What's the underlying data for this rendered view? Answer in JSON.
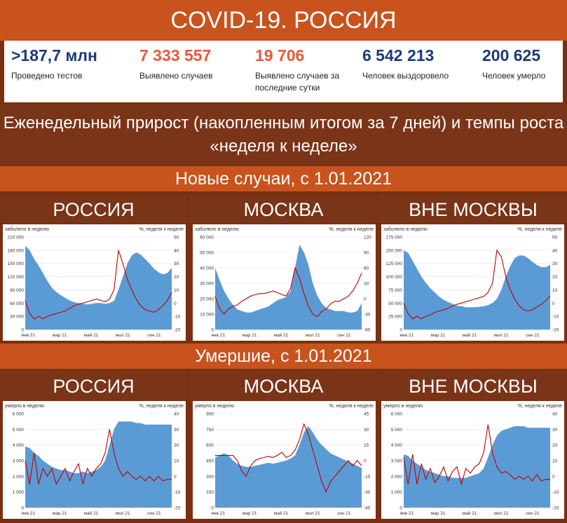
{
  "title": "COVID-19. РОССИЯ",
  "stats": [
    {
      "value": ">187,7 млн",
      "label": "Проведено тестов",
      "color": "#1c3a7a"
    },
    {
      "value": "7 333 557",
      "label": "Выявлено случаев",
      "color": "#e8583a"
    },
    {
      "value": "19 706",
      "label": "Выявлено случаев за последние сутки",
      "color": "#e8583a"
    },
    {
      "value": "6 542 213",
      "label": "Человек выздоровело",
      "color": "#1c3a7a"
    },
    {
      "value": "200 625",
      "label": "Человек умерло",
      "color": "#1c3a7a"
    }
  ],
  "subtitle": "Еженедельный прирост (накопленным итогом за 7 дней) и темпы роста «неделя к неделе»",
  "section_cases": "Новые случаи, с 1.01.2021",
  "section_deaths": "Умершие, с 1.01.2021",
  "regions": [
    "РОССИЯ",
    "МОСКВА",
    "ВНЕ МОСКВЫ"
  ],
  "colors": {
    "area": "#5b9bd5",
    "line": "#c00000",
    "header": "#c8531c",
    "dark": "#7a3418"
  },
  "chart_data": [
    {
      "type": "area",
      "region": "РОССИЯ",
      "metric": "cases",
      "ylabel": "заболело в неделю",
      "y2label": "%, неделя к неделе",
      "x_ticks": [
        "янв 21",
        "мар 21",
        "май 21",
        "июл 21",
        "сен 21"
      ],
      "ylim": [
        0,
        210000
      ],
      "y_ticks": [
        0,
        30000,
        60000,
        90000,
        120000,
        150000,
        180000,
        210000
      ],
      "y_tick_labels": [
        "0",
        "30 000",
        "60 000",
        "90 000",
        "120 000",
        "150 000",
        "180 000",
        "210 000"
      ],
      "y2lim": [
        -20,
        50
      ],
      "y2_ticks": [
        -20,
        -10,
        0,
        10,
        20,
        30,
        40,
        50
      ],
      "series": [
        {
          "name": "заболело в неделю",
          "axis": "left",
          "values": [
            190000,
            180000,
            160000,
            145000,
            128000,
            110000,
            95000,
            85000,
            78000,
            72000,
            66000,
            62000,
            60000,
            58000,
            57000,
            58000,
            60000,
            60000,
            58000,
            60000,
            65000,
            90000,
            120000,
            150000,
            168000,
            175000,
            170000,
            160000,
            150000,
            138000,
            130000,
            125000,
            128000,
            140000
          ]
        },
        {
          "name": "%, неделя к неделе",
          "axis": "right",
          "values": [
            2,
            -8,
            -12,
            -10,
            -12,
            -10,
            -9,
            -8,
            -7,
            -6,
            -4,
            -2,
            -1,
            0,
            1,
            2,
            3,
            2,
            1,
            3,
            10,
            40,
            30,
            18,
            10,
            3,
            -2,
            -5,
            -6,
            -7,
            -5,
            -2,
            2,
            8
          ]
        }
      ]
    },
    {
      "type": "area",
      "region": "МОСКВА",
      "metric": "cases",
      "ylabel": "заболело в неделю",
      "y2label": "%, неделя к неделе",
      "x_ticks": [
        "янв 21",
        "мар 21",
        "май 21",
        "июл 21",
        "сен 21"
      ],
      "ylim": [
        0,
        60000
      ],
      "y_ticks": [
        0,
        10000,
        20000,
        30000,
        40000,
        50000,
        60000
      ],
      "y_tick_labels": [
        "0",
        "10 000",
        "20 000",
        "30 000",
        "40 000",
        "50 000",
        "60 000"
      ],
      "y2lim": [
        -60,
        120
      ],
      "y2_ticks": [
        -60,
        -30,
        0,
        30,
        60,
        90,
        120
      ],
      "series": [
        {
          "name": "заболело в неделю",
          "axis": "left",
          "values": [
            40000,
            32000,
            25000,
            20000,
            16000,
            13000,
            12000,
            11000,
            11000,
            12000,
            13000,
            14000,
            15000,
            17000,
            19000,
            20000,
            21000,
            25000,
            40000,
            55000,
            50000,
            42000,
            30000,
            22000,
            17000,
            14000,
            13000,
            12000,
            12000,
            12000,
            11000,
            11000,
            12000,
            17000
          ]
        },
        {
          "name": "%, неделя к неделе",
          "axis": "right",
          "values": [
            5,
            -20,
            -30,
            -20,
            -15,
            -12,
            -5,
            0,
            5,
            8,
            10,
            10,
            12,
            15,
            12,
            8,
            5,
            20,
            60,
            40,
            10,
            -15,
            -30,
            -35,
            -25,
            -20,
            -10,
            -5,
            -5,
            0,
            5,
            15,
            30,
            50
          ]
        }
      ]
    },
    {
      "type": "area",
      "region": "ВНЕ МОСКВЫ",
      "metric": "cases",
      "ylabel": "заболело в неделю",
      "y2label": "%, неделя к неделе",
      "x_ticks": [
        "янв 21",
        "мар 21",
        "май 21",
        "июл 21",
        "сен 21"
      ],
      "ylim": [
        0,
        175000
      ],
      "y_ticks": [
        0,
        25000,
        50000,
        75000,
        100000,
        125000,
        150000,
        175000
      ],
      "y_tick_labels": [
        "0",
        "25 000",
        "50 000",
        "75 000",
        "100 000",
        "125 000",
        "150 000",
        "175 000"
      ],
      "y2lim": [
        -20,
        50
      ],
      "y2_ticks": [
        -20,
        -10,
        0,
        10,
        20,
        30,
        40,
        50
      ],
      "series": [
        {
          "name": "заболело в неделю",
          "axis": "left",
          "values": [
            150000,
            145000,
            130000,
            115000,
            100000,
            88000,
            78000,
            70000,
            62000,
            56000,
            52000,
            48000,
            45000,
            44000,
            42000,
            42000,
            42000,
            43000,
            44000,
            46000,
            50000,
            58000,
            75000,
            100000,
            120000,
            135000,
            140000,
            140000,
            135000,
            128000,
            122000,
            118000,
            118000,
            122000
          ]
        },
        {
          "name": "%, неделя к неделе",
          "axis": "right",
          "values": [
            0,
            -8,
            -12,
            -10,
            -12,
            -10,
            -9,
            -7,
            -6,
            -5,
            -4,
            -2,
            -1,
            0,
            1,
            2,
            3,
            4,
            5,
            8,
            15,
            40,
            35,
            20,
            10,
            3,
            -2,
            -5,
            -6,
            -5,
            -3,
            -1,
            2,
            5
          ]
        }
      ]
    },
    {
      "type": "area",
      "region": "РОССИЯ",
      "metric": "deaths",
      "ylabel": "умерло в неделю",
      "y2label": "%, неделя к неделе",
      "x_ticks": [
        "янв 21",
        "мар 21",
        "май 21",
        "июл 21",
        "сен 21"
      ],
      "ylim": [
        0,
        6000
      ],
      "y_ticks": [
        0,
        1000,
        2000,
        3000,
        4000,
        5000,
        6000
      ],
      "y_tick_labels": [
        "0",
        "1 000",
        "2 000",
        "3 000",
        "4 000",
        "5 000",
        "6 000"
      ],
      "y2lim": [
        -20,
        40
      ],
      "y2_ticks": [
        -20,
        -10,
        0,
        10,
        20,
        30,
        40
      ],
      "series": [
        {
          "name": "умерло в неделю",
          "axis": "left",
          "values": [
            3900,
            3800,
            3500,
            3300,
            3000,
            2800,
            2600,
            2500,
            2400,
            2400,
            2300,
            2200,
            2200,
            2300,
            2200,
            2300,
            2400,
            2600,
            3000,
            4000,
            5000,
            5500,
            5500,
            5500,
            5500,
            5400,
            5400,
            5300,
            5300,
            5300,
            5300,
            5300,
            5300,
            5300
          ]
        },
        {
          "name": "%, неделя к неделе",
          "axis": "right",
          "values": [
            10,
            -5,
            15,
            -5,
            5,
            0,
            5,
            -5,
            0,
            5,
            -3,
            3,
            8,
            -5,
            5,
            0,
            5,
            8,
            15,
            30,
            15,
            5,
            0,
            3,
            0,
            -2,
            0,
            -3,
            0,
            -3,
            0,
            -3,
            -2,
            -2
          ]
        }
      ]
    },
    {
      "type": "area",
      "region": "МОСКВА",
      "metric": "deaths",
      "ylabel": "умерло в неделю",
      "y2label": "%, неделя к неделе",
      "x_ticks": [
        "янв 21",
        "мар 21",
        "май 21",
        "июл 21",
        "сен 21"
      ],
      "ylim": [
        0,
        900
      ],
      "y_ticks": [
        0,
        150,
        300,
        450,
        600,
        750,
        900
      ],
      "y_tick_labels": [
        "0",
        "150",
        "300",
        "450",
        "600",
        "750",
        "900"
      ],
      "y2lim": [
        -45,
        45
      ],
      "y2_ticks": [
        -45,
        -30,
        -15,
        0,
        15,
        30,
        45
      ],
      "series": [
        {
          "name": "умерло в неделю",
          "axis": "left",
          "values": [
            480,
            500,
            520,
            500,
            450,
            420,
            400,
            390,
            390,
            400,
            410,
            420,
            430,
            420,
            430,
            440,
            450,
            470,
            500,
            600,
            720,
            780,
            720,
            650,
            600,
            560,
            520,
            500,
            480,
            460,
            440,
            420,
            400,
            380
          ]
        },
        {
          "name": "%, неделя к неделе",
          "axis": "right",
          "values": [
            5,
            5,
            5,
            5,
            5,
            0,
            -10,
            -15,
            -5,
            0,
            2,
            3,
            4,
            3,
            5,
            8,
            3,
            5,
            10,
            20,
            35,
            25,
            10,
            -5,
            -20,
            -30,
            -20,
            -15,
            -10,
            -5,
            0,
            -5,
            0,
            -5
          ]
        }
      ]
    },
    {
      "type": "area",
      "region": "ВНЕ МОСКВЫ",
      "metric": "deaths",
      "ylabel": "умерло в неделю",
      "y2label": "%, неделя к неделе",
      "x_ticks": [
        "янв 21",
        "мар 21",
        "май 21",
        "июл 21",
        "сен 21"
      ],
      "ylim": [
        0,
        6000
      ],
      "y_ticks": [
        0,
        1000,
        2000,
        3000,
        4000,
        5000,
        6000
      ],
      "y_tick_labels": [
        "0",
        "1 000",
        "2 000",
        "3 000",
        "4 000",
        "5 000",
        "6 000"
      ],
      "y2lim": [
        -20,
        40
      ],
      "y2_ticks": [
        -20,
        -10,
        0,
        10,
        20,
        30,
        40
      ],
      "series": [
        {
          "name": "умерло в неделю",
          "axis": "left",
          "values": [
            3400,
            3300,
            3000,
            2800,
            2600,
            2400,
            2300,
            2200,
            2100,
            2000,
            2000,
            1900,
            1900,
            1900,
            1900,
            2000,
            2100,
            2200,
            2500,
            3200,
            4000,
            4600,
            4900,
            5000,
            5100,
            5200,
            5200,
            5200,
            5100,
            5100,
            5100,
            5100,
            5100,
            5100
          ]
        },
        {
          "name": "%, неделя к неделе",
          "axis": "right",
          "values": [
            12,
            -5,
            14,
            -5,
            8,
            -2,
            5,
            -4,
            0,
            6,
            -3,
            3,
            6,
            -5,
            5,
            2,
            6,
            8,
            15,
            33,
            15,
            6,
            2,
            3,
            1,
            -2,
            0,
            -2,
            0,
            -3,
            1,
            -3,
            -2,
            -2
          ]
        }
      ]
    }
  ]
}
